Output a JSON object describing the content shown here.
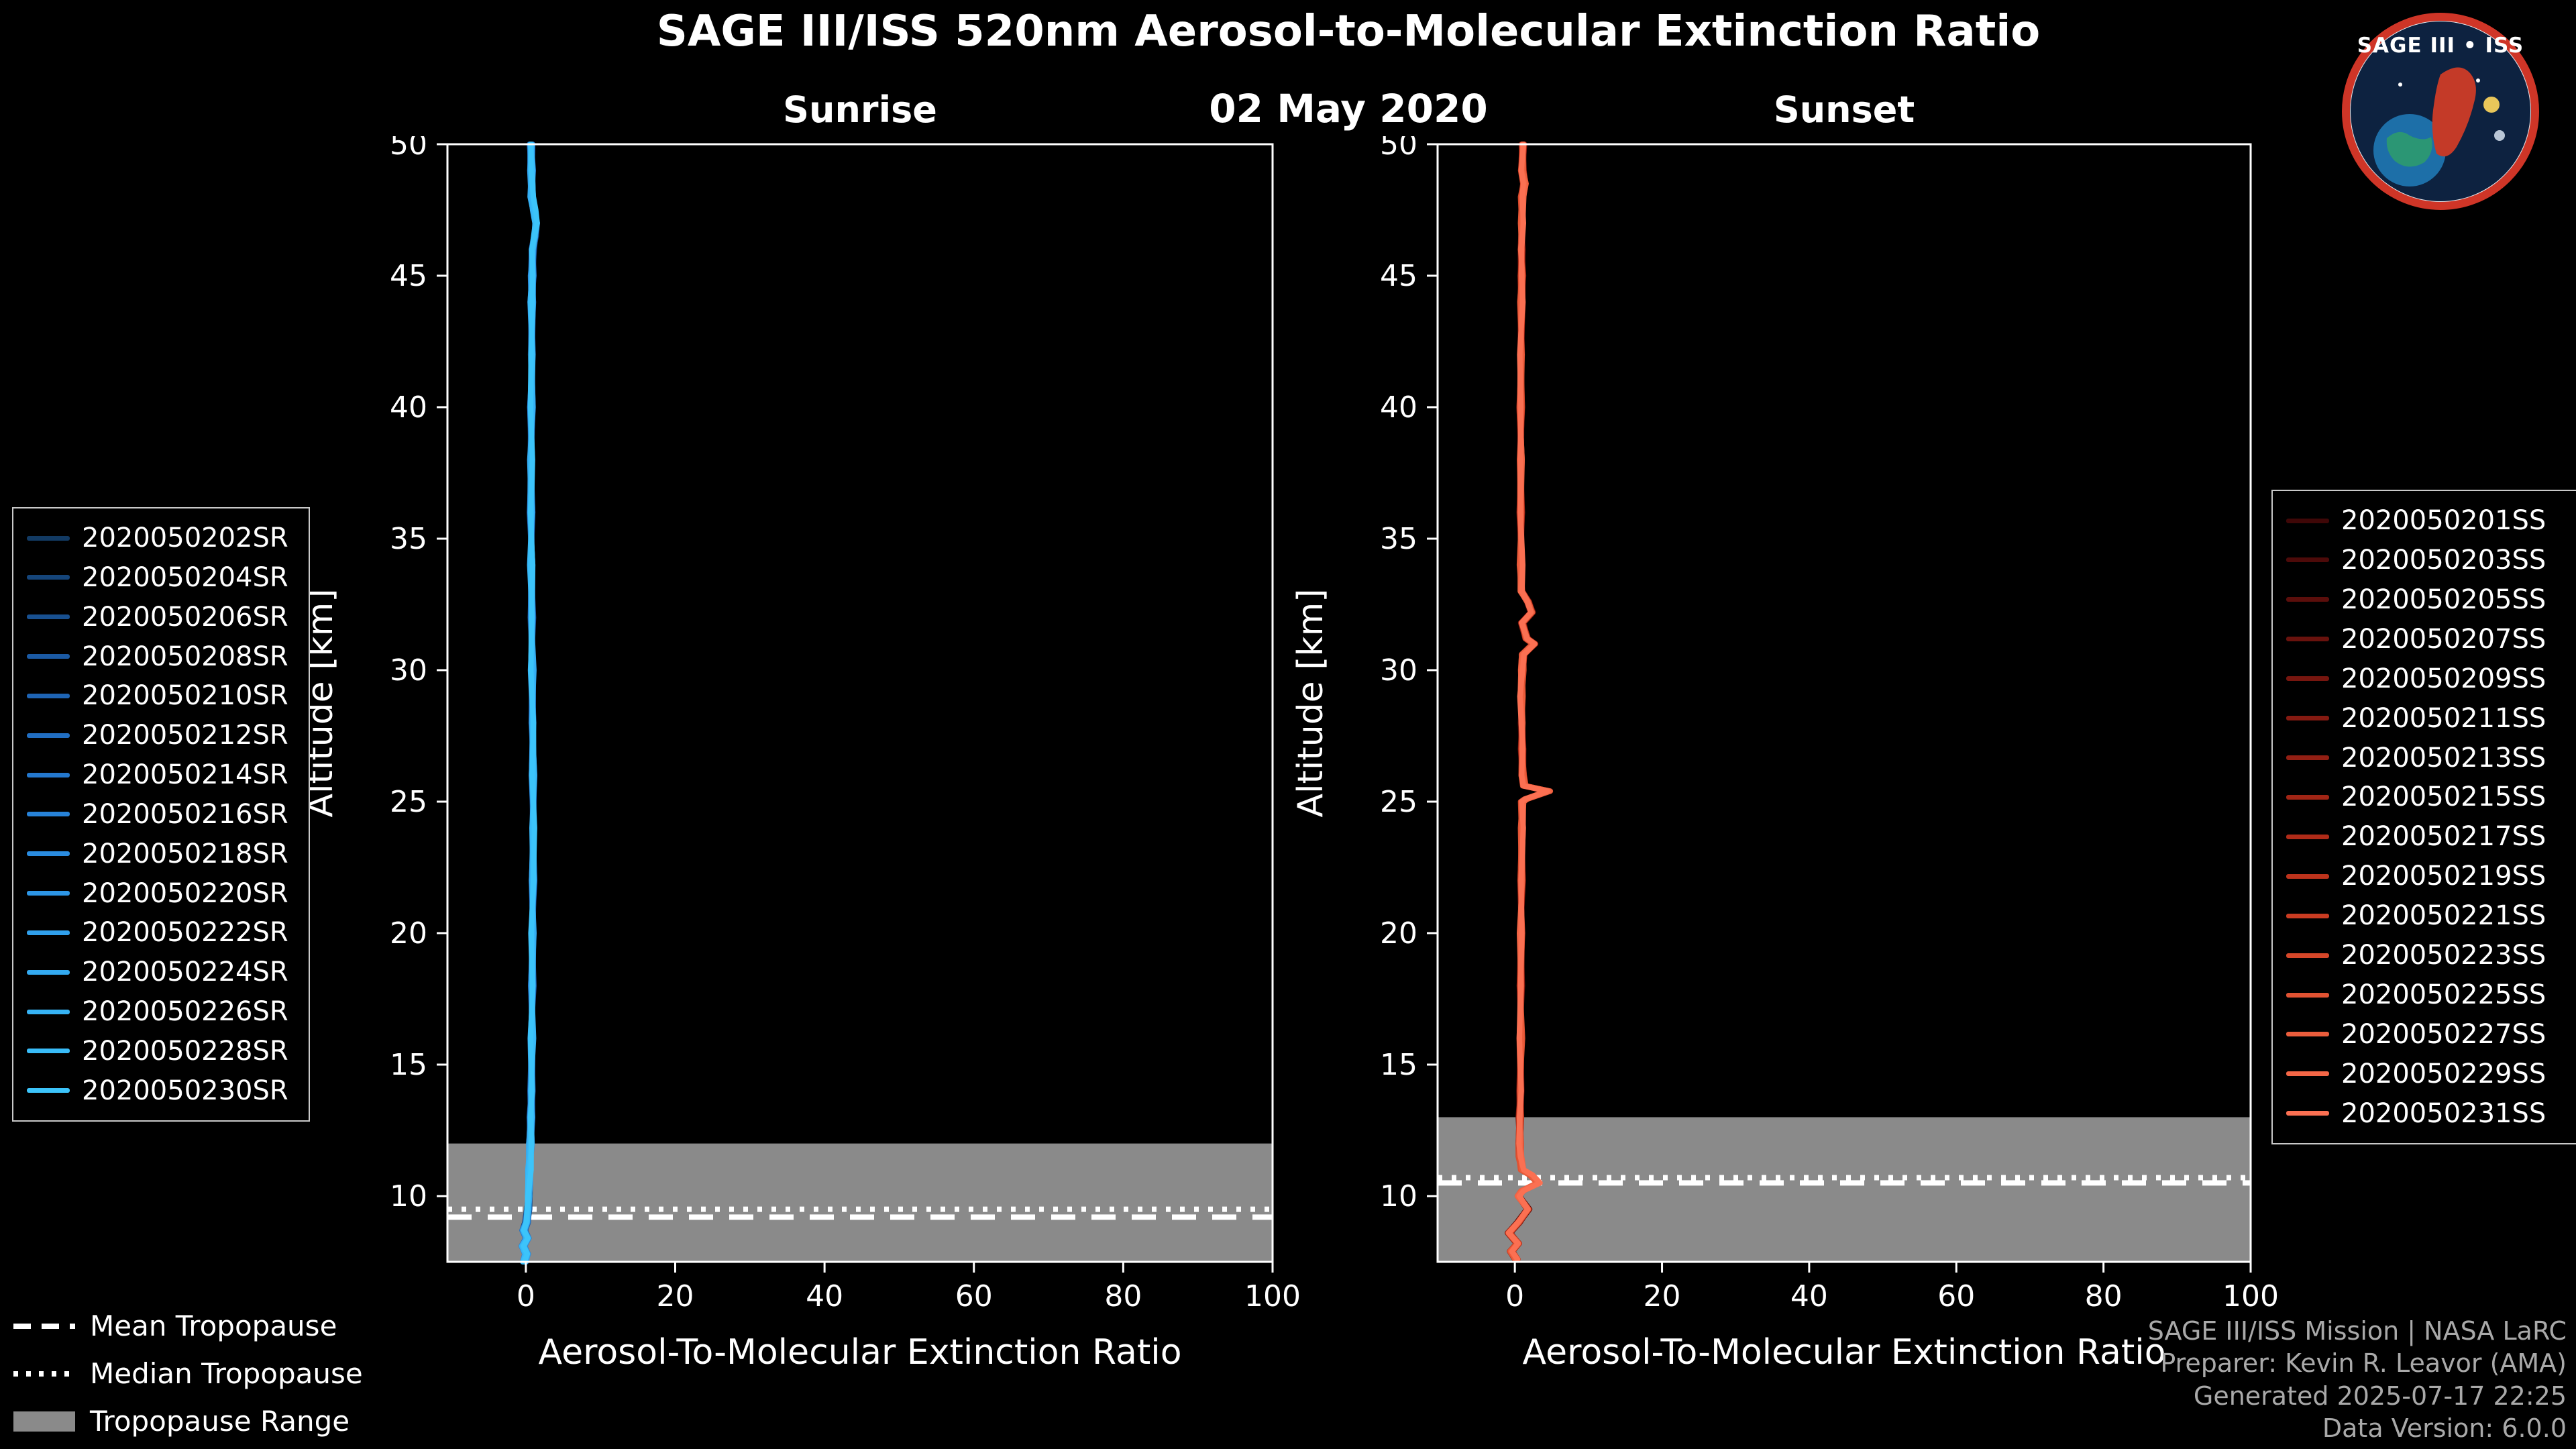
{
  "header": {
    "title": "SAGE III/ISS 520nm Aerosol-to-Molecular Extinction Ratio",
    "date": "02 May 2020"
  },
  "logo": {
    "text": "SAGE III • ISS"
  },
  "tropopause_legend": {
    "mean": "Mean Tropopause",
    "median": "Median Tropopause",
    "range": "Tropopause Range"
  },
  "footer": {
    "lines": [
      "SAGE III/ISS Mission | NASA LaRC",
      "Preparer: Kevin R. Leavor (AMA)",
      "Generated 2025-07-17 22:25",
      "Data Version: 6.0.0"
    ]
  },
  "chart_data": [
    {
      "type": "line",
      "title": "Sunrise",
      "xlabel": "Aerosol-To-Molecular Extinction Ratio",
      "ylabel": "Altitude [km]",
      "xlim": [
        -10.5,
        100
      ],
      "ylim": [
        7.5,
        50
      ],
      "x_ticks": [
        0,
        20,
        40,
        60,
        80,
        100
      ],
      "y_ticks": [
        10,
        15,
        20,
        25,
        30,
        35,
        40,
        45,
        50
      ],
      "grid": false,
      "legend_position": "outside-left",
      "tropopause": {
        "mean_km": 9.2,
        "median_km": 9.5,
        "range_km": [
          7.5,
          12.0
        ]
      },
      "profile": [
        [
          50,
          0.7
        ],
        [
          49,
          0.75
        ],
        [
          48,
          0.8
        ],
        [
          47.5,
          1.1
        ],
        [
          47,
          1.4
        ],
        [
          46.5,
          1.2
        ],
        [
          46,
          0.9
        ],
        [
          45,
          0.85
        ],
        [
          44,
          0.8
        ],
        [
          42,
          0.8
        ],
        [
          40,
          0.75
        ],
        [
          38,
          0.7
        ],
        [
          36,
          0.7
        ],
        [
          34,
          0.75
        ],
        [
          32,
          0.8
        ],
        [
          30,
          0.85
        ],
        [
          28,
          0.9
        ],
        [
          26,
          0.95
        ],
        [
          24,
          1.0
        ],
        [
          22,
          0.95
        ],
        [
          20,
          0.9
        ],
        [
          18,
          0.85
        ],
        [
          16,
          0.8
        ],
        [
          14,
          0.75
        ],
        [
          13,
          0.7
        ],
        [
          12,
          0.6
        ],
        [
          11,
          0.5
        ],
        [
          10.5,
          0.45
        ],
        [
          10,
          0.4
        ],
        [
          9.5,
          0.3
        ],
        [
          9,
          0.1
        ],
        [
          8.7,
          -0.3
        ],
        [
          8.4,
          0.2
        ],
        [
          8.1,
          -0.4
        ],
        [
          7.8,
          0.1
        ],
        [
          7.5,
          -0.2
        ]
      ],
      "series": [
        {
          "name": "2020050202SR",
          "color": "#123a63"
        },
        {
          "name": "2020050204SR",
          "color": "#15457a"
        },
        {
          "name": "2020050206SR",
          "color": "#185090"
        },
        {
          "name": "2020050208SR",
          "color": "#1b5aa4"
        },
        {
          "name": "2020050210SR",
          "color": "#1e64b4"
        },
        {
          "name": "2020050212SR",
          "color": "#216ec2"
        },
        {
          "name": "2020050214SR",
          "color": "#2478ce"
        },
        {
          "name": "2020050216SR",
          "color": "#2782d8"
        },
        {
          "name": "2020050218SR",
          "color": "#2a8ce0"
        },
        {
          "name": "2020050220SR",
          "color": "#2d96e6"
        },
        {
          "name": "2020050222SR",
          "color": "#30a0ec"
        },
        {
          "name": "2020050224SR",
          "color": "#33aaf1"
        },
        {
          "name": "2020050226SR",
          "color": "#36b3f5"
        },
        {
          "name": "2020050228SR",
          "color": "#39bcf8"
        },
        {
          "name": "2020050230SR",
          "color": "#3cc4fa"
        }
      ]
    },
    {
      "type": "line",
      "title": "Sunset",
      "xlabel": "Aerosol-To-Molecular Extinction Ratio",
      "ylabel": "Altitude [km]",
      "xlim": [
        -10.5,
        100
      ],
      "ylim": [
        7.5,
        50
      ],
      "x_ticks": [
        0,
        20,
        40,
        60,
        80,
        100
      ],
      "y_ticks": [
        10,
        15,
        20,
        25,
        30,
        35,
        40,
        45,
        50
      ],
      "grid": false,
      "legend_position": "outside-right",
      "tropopause": {
        "mean_km": 10.5,
        "median_km": 10.7,
        "range_km": [
          7.5,
          13.0
        ]
      },
      "profile": [
        [
          50,
          1.1
        ],
        [
          49,
          1.0
        ],
        [
          48.5,
          1.3
        ],
        [
          48,
          1.0
        ],
        [
          47,
          0.95
        ],
        [
          46,
          0.9
        ],
        [
          45,
          0.95
        ],
        [
          44,
          0.9
        ],
        [
          42,
          0.85
        ],
        [
          40,
          0.8
        ],
        [
          38,
          0.8
        ],
        [
          36,
          0.8
        ],
        [
          34,
          0.85
        ],
        [
          33,
          0.9
        ],
        [
          32.6,
          1.8
        ],
        [
          32.2,
          2.3
        ],
        [
          31.8,
          1.0
        ],
        [
          31.2,
          1.6
        ],
        [
          31,
          2.6
        ],
        [
          30.6,
          1.1
        ],
        [
          30,
          1.0
        ],
        [
          29,
          0.9
        ],
        [
          28,
          0.95
        ],
        [
          27,
          1.0
        ],
        [
          26,
          1.05
        ],
        [
          25.6,
          1.3
        ],
        [
          25.4,
          4.6
        ],
        [
          25.1,
          1.5
        ],
        [
          25,
          1.0
        ],
        [
          24,
          0.95
        ],
        [
          22,
          0.9
        ],
        [
          20,
          0.85
        ],
        [
          18,
          0.8
        ],
        [
          16,
          0.8
        ],
        [
          14,
          0.75
        ],
        [
          13,
          0.7
        ],
        [
          12,
          0.65
        ],
        [
          11.5,
          0.7
        ],
        [
          11,
          1.0
        ],
        [
          10.8,
          2.2
        ],
        [
          10.5,
          3.2
        ],
        [
          10.2,
          1.0
        ],
        [
          10,
          0.5
        ],
        [
          9.5,
          1.8
        ],
        [
          9,
          0.5
        ],
        [
          8.6,
          -0.8
        ],
        [
          8.2,
          0.4
        ],
        [
          7.9,
          -0.5
        ],
        [
          7.6,
          0.2
        ]
      ],
      "series": [
        {
          "name": "2020050201SS",
          "color": "#3f0707"
        },
        {
          "name": "2020050203SS",
          "color": "#4d0a09"
        },
        {
          "name": "2020050205SS",
          "color": "#5b0e0b"
        },
        {
          "name": "2020050207SS",
          "color": "#69120d"
        },
        {
          "name": "2020050209SS",
          "color": "#77160f"
        },
        {
          "name": "2020050211SS",
          "color": "#851a11"
        },
        {
          "name": "2020050213SS",
          "color": "#931f13"
        },
        {
          "name": "2020050215SS",
          "color": "#a12515"
        },
        {
          "name": "2020050217SS",
          "color": "#af2b18"
        },
        {
          "name": "2020050219SS",
          "color": "#bd331c"
        },
        {
          "name": "2020050221SS",
          "color": "#ca3c22"
        },
        {
          "name": "2020050223SS",
          "color": "#d64729"
        },
        {
          "name": "2020050225SS",
          "color": "#e15232"
        },
        {
          "name": "2020050227SS",
          "color": "#eb5d3c"
        },
        {
          "name": "2020050229SS",
          "color": "#f46747"
        },
        {
          "name": "2020050231SS",
          "color": "#fb7052"
        }
      ]
    }
  ]
}
